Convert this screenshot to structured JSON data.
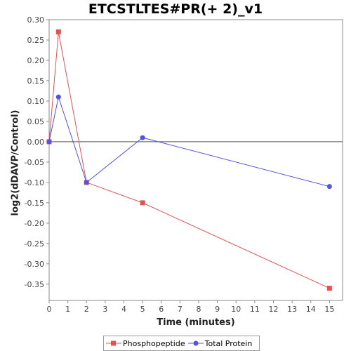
{
  "chart_data": {
    "type": "line",
    "title": "ETCSTLTES#PR(+ 2)_v1",
    "xlabel": "Time (minutes)",
    "ylabel": "log2(dDAVP/Control)",
    "xlim": [
      0,
      15.7
    ],
    "ylim": [
      -0.39,
      0.3
    ],
    "xticks": [
      0,
      1,
      2,
      3,
      4,
      5,
      6,
      7,
      8,
      9,
      10,
      11,
      12,
      13,
      14,
      15
    ],
    "yticks": [
      0.3,
      0.25,
      0.2,
      0.15,
      0.1,
      0.05,
      0.0,
      -0.05,
      -0.1,
      -0.15,
      -0.2,
      -0.25,
      -0.3,
      -0.35
    ],
    "ytick_labels": [
      "0.30",
      "0.25",
      "0.20",
      "0.15",
      "0.10",
      "0.05",
      "0.00",
      "-0.05",
      "-0.10",
      "-0.15",
      "-0.20",
      "-0.25",
      "-0.30",
      "-0.35"
    ],
    "zero_line": true,
    "grid": false,
    "legend_position": "bottom",
    "series": [
      {
        "name": "Phosphopeptide",
        "color": "#e35252",
        "marker": "square",
        "x": [
          0,
          0.5,
          2,
          5,
          15
        ],
        "y": [
          0.0,
          0.27,
          -0.1,
          -0.15,
          -0.36
        ]
      },
      {
        "name": "Total Protein",
        "color": "#5252e3",
        "marker": "circle",
        "x": [
          0,
          0.5,
          2,
          5,
          15
        ],
        "y": [
          0.0,
          0.11,
          -0.1,
          0.01,
          -0.11
        ]
      }
    ]
  }
}
